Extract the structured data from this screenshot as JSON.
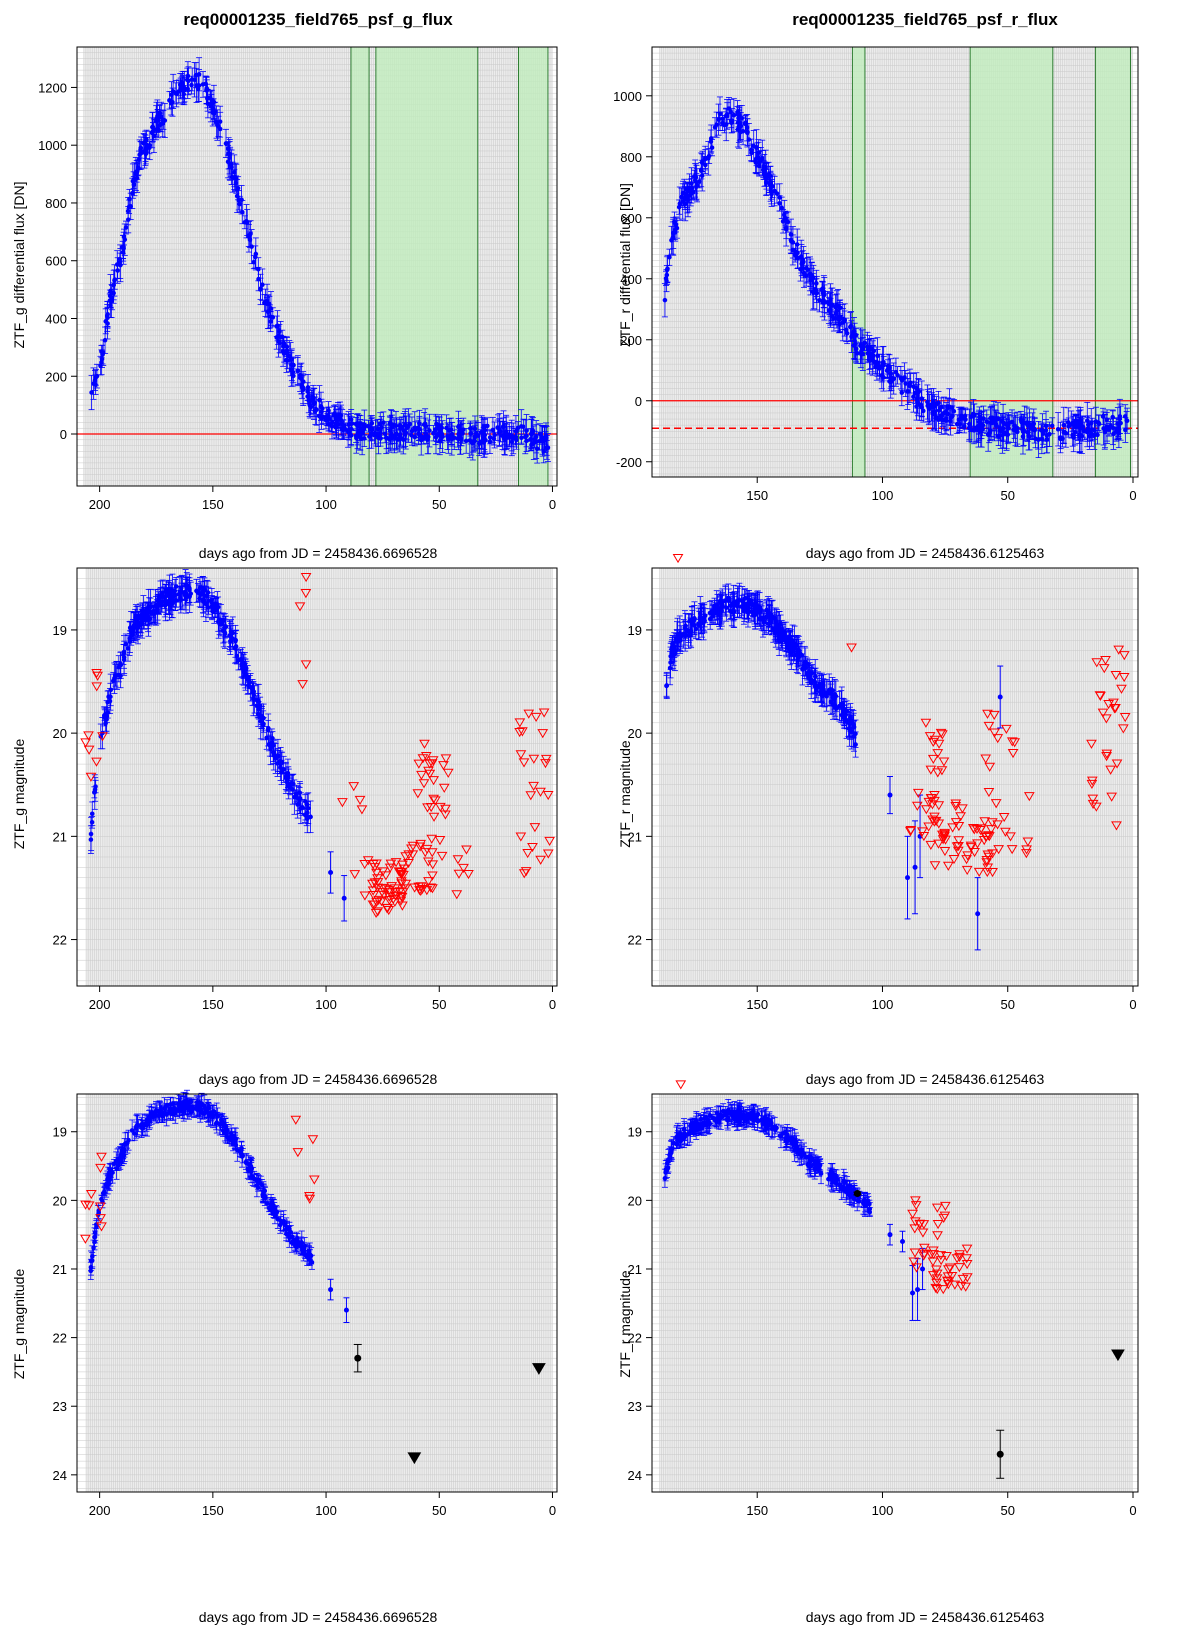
{
  "chart_data": [
    {
      "type": "scatter",
      "title": "req00001235_field765_psf_g_flux",
      "xlabel": "days ago from JD = 2458436.6696528",
      "ylabel": "ZTF_g  differential flux  [DN]",
      "xlim": [
        210,
        -2
      ],
      "ylim": [
        -180,
        1340
      ],
      "xticks": [
        200,
        150,
        100,
        50,
        0
      ],
      "yticks": [
        0,
        200,
        400,
        600,
        800,
        1000,
        1200
      ],
      "grid": true,
      "x_reversed": true,
      "reference_line_solid": 0,
      "shaded_intervals": [
        [
          89,
          81
        ],
        [
          78,
          33
        ],
        [
          15,
          2
        ]
      ],
      "curve": {
        "kind": "flux",
        "rise": [
          [
            205,
            120
          ],
          [
            203,
            170
          ],
          [
            200,
            230
          ],
          [
            195,
            480
          ],
          [
            190,
            620
          ],
          [
            186,
            830
          ],
          [
            182,
            960
          ],
          [
            176,
            1050
          ],
          [
            170,
            1130
          ],
          [
            165,
            1190
          ],
          [
            160,
            1220
          ],
          [
            155,
            1215
          ],
          [
            150,
            1140
          ],
          [
            145,
            1010
          ],
          [
            140,
            870
          ],
          [
            135,
            730
          ],
          [
            130,
            560
          ],
          [
            125,
            420
          ],
          [
            120,
            320
          ],
          [
            115,
            230
          ],
          [
            110,
            160
          ],
          [
            105,
            100
          ],
          [
            100,
            70
          ],
          [
            95,
            40
          ],
          [
            90,
            25
          ],
          [
            85,
            12
          ],
          [
            70,
            10
          ],
          [
            50,
            5
          ],
          [
            35,
            -10
          ],
          [
            30,
            0
          ],
          [
            12,
            0
          ],
          [
            2,
            -40
          ]
        ]
      },
      "limits": []
    },
    {
      "type": "scatter",
      "title": "req00001235_field765_psf_r_flux",
      "xlabel": "days ago from JD = 2458436.6125463",
      "ylabel": "ZTF_r  differential flux  [DN]",
      "xlim": [
        192,
        -2
      ],
      "ylim": [
        -250,
        1160
      ],
      "xticks": [
        150,
        100,
        50,
        0
      ],
      "yticks": [
        -200,
        0,
        200,
        400,
        600,
        800,
        1000
      ],
      "grid": true,
      "x_reversed": true,
      "reference_line_solid": 0,
      "reference_line_dashed": -90,
      "shaded_intervals": [
        [
          112,
          107
        ],
        [
          65,
          32
        ],
        [
          15,
          1
        ]
      ],
      "curve": {
        "kind": "flux",
        "rise": [
          [
            187,
            330
          ],
          [
            184,
            540
          ],
          [
            180,
            650
          ],
          [
            176,
            690
          ],
          [
            170,
            800
          ],
          [
            165,
            930
          ],
          [
            160,
            940
          ],
          [
            155,
            890
          ],
          [
            150,
            800
          ],
          [
            145,
            720
          ],
          [
            140,
            620
          ],
          [
            135,
            500
          ],
          [
            130,
            410
          ],
          [
            125,
            350
          ],
          [
            120,
            300
          ],
          [
            115,
            260
          ],
          [
            110,
            180
          ],
          [
            105,
            150
          ],
          [
            100,
            110
          ],
          [
            95,
            70
          ],
          [
            90,
            40
          ],
          [
            85,
            0
          ],
          [
            80,
            -30
          ],
          [
            70,
            -50
          ],
          [
            60,
            -80
          ],
          [
            50,
            -90
          ],
          [
            45,
            -90
          ],
          [
            36,
            -110
          ],
          [
            12,
            -80
          ],
          [
            2,
            -80
          ]
        ]
      },
      "limits": []
    },
    {
      "type": "scatter",
      "title": "",
      "xlabel": "days ago from JD = 2458436.6696528",
      "ylabel": "ZTF_g  magnitude",
      "xlim": [
        210,
        -2
      ],
      "ylim": [
        22.45,
        18.4
      ],
      "xticks": [
        200,
        150,
        100,
        50,
        0
      ],
      "yticks": [
        19,
        20,
        21,
        22
      ],
      "grid": true,
      "x_reversed": true,
      "curve": {
        "kind": "mag",
        "rise": [
          [
            204,
            21.0
          ],
          [
            202,
            20.5
          ],
          [
            200,
            20.1
          ],
          [
            195,
            19.6
          ],
          [
            190,
            19.35
          ],
          [
            186,
            19.0
          ],
          [
            182,
            18.9
          ],
          [
            176,
            18.78
          ],
          [
            170,
            18.68
          ],
          [
            162,
            18.62
          ],
          [
            155,
            18.65
          ],
          [
            150,
            18.75
          ],
          [
            145,
            18.95
          ],
          [
            140,
            19.15
          ],
          [
            135,
            19.45
          ],
          [
            130,
            19.75
          ],
          [
            125,
            20.05
          ],
          [
            120,
            20.3
          ],
          [
            115,
            20.55
          ],
          [
            110,
            20.7
          ],
          [
            106,
            20.85
          ]
        ]
      },
      "extra_points": [
        [
          98,
          21.35,
          0.2
        ],
        [
          92,
          21.6,
          0.22
        ]
      ],
      "limits": {
        "marker": "open-triangle-down",
        "color": "#ff0000",
        "groups": [
          [
            205,
            20.3,
            4,
            0.4
          ],
          [
            200,
            19.9,
            5,
            0.6
          ],
          [
            110,
            19.3,
            5,
            0.9
          ],
          [
            87,
            21.0,
            8,
            0.6
          ],
          [
            73,
            21.5,
            50,
            0.25
          ],
          [
            60,
            21.3,
            30,
            0.25
          ],
          [
            53,
            20.5,
            25,
            0.4
          ],
          [
            48,
            21.3,
            8,
            0.3
          ],
          [
            38,
            21.25,
            3,
            0.15
          ],
          [
            8,
            20.5,
            25,
            0.9
          ]
        ]
      }
    },
    {
      "type": "scatter",
      "title": "",
      "xlabel": "days ago from JD = 2458436.6125463",
      "ylabel": "ZTF_r  magnitude",
      "xlim": [
        192,
        -2
      ],
      "ylim": [
        22.45,
        18.4
      ],
      "xticks": [
        150,
        100,
        50,
        0
      ],
      "yticks": [
        19,
        20,
        21,
        22
      ],
      "grid": true,
      "x_reversed": true,
      "curve": {
        "kind": "mag",
        "rise": [
          [
            187,
            19.7
          ],
          [
            184,
            19.2
          ],
          [
            180,
            19.05
          ],
          [
            176,
            18.95
          ],
          [
            170,
            18.85
          ],
          [
            165,
            18.78
          ],
          [
            160,
            18.75
          ],
          [
            155,
            18.76
          ],
          [
            150,
            18.8
          ],
          [
            145,
            18.9
          ],
          [
            140,
            19.05
          ],
          [
            135,
            19.2
          ],
          [
            130,
            19.4
          ],
          [
            125,
            19.55
          ],
          [
            120,
            19.65
          ],
          [
            115,
            19.8
          ],
          [
            112,
            19.95
          ],
          [
            110,
            20.1
          ]
        ]
      },
      "extra_points": [
        [
          97,
          20.6,
          0.18
        ],
        [
          90,
          21.4,
          0.4
        ],
        [
          87,
          21.3,
          0.45
        ],
        [
          85,
          21.0,
          0.4
        ],
        [
          62,
          21.75,
          0.35
        ],
        [
          53,
          19.65,
          0.3
        ]
      ],
      "limits": {
        "marker": "open-triangle-down",
        "color": "#ff0000",
        "groups": [
          [
            182,
            18.35,
            1,
            0.05
          ],
          [
            112,
            19.2,
            1,
            0.05
          ],
          [
            82,
            20.4,
            25,
            0.6
          ],
          [
            75,
            20.95,
            30,
            0.35
          ],
          [
            63,
            21.1,
            25,
            0.25
          ],
          [
            52,
            20.5,
            25,
            0.8
          ],
          [
            42,
            20.9,
            4,
            0.3
          ],
          [
            10,
            20.0,
            30,
            0.9
          ]
        ]
      }
    },
    {
      "type": "scatter",
      "title": "",
      "xlabel": "days ago from JD = 2458436.6696528",
      "ylabel": "ZTF_g  magnitude",
      "xlim": [
        210,
        -2
      ],
      "ylim": [
        24.25,
        18.45
      ],
      "xticks": [
        200,
        150,
        100,
        50,
        0
      ],
      "yticks": [
        19,
        20,
        21,
        22,
        23,
        24
      ],
      "grid": true,
      "x_reversed": true,
      "curve": {
        "kind": "mag",
        "rise": [
          [
            204,
            21.0
          ],
          [
            202,
            20.5
          ],
          [
            200,
            20.1
          ],
          [
            195,
            19.6
          ],
          [
            190,
            19.35
          ],
          [
            186,
            19.0
          ],
          [
            182,
            18.9
          ],
          [
            176,
            18.78
          ],
          [
            170,
            18.68
          ],
          [
            162,
            18.62
          ],
          [
            155,
            18.65
          ],
          [
            150,
            18.75
          ],
          [
            145,
            18.95
          ],
          [
            140,
            19.15
          ],
          [
            135,
            19.45
          ],
          [
            130,
            19.75
          ],
          [
            125,
            20.05
          ],
          [
            120,
            20.3
          ],
          [
            115,
            20.55
          ],
          [
            110,
            20.7
          ],
          [
            106,
            20.85
          ]
        ]
      },
      "extra_points": [
        [
          98,
          21.3,
          0.15
        ],
        [
          91,
          21.6,
          0.18
        ]
      ],
      "limits": {
        "marker": "open-triangle-down",
        "color": "#ff0000",
        "groups": [
          [
            205,
            20.3,
            4,
            0.4
          ],
          [
            200,
            19.9,
            5,
            0.6
          ],
          [
            110,
            19.3,
            6,
            0.9
          ]
        ]
      },
      "black_points": [
        {
          "x": 86,
          "y": 22.3,
          "err": 0.2
        }
      ],
      "black_limits": [
        {
          "x": 61,
          "y": 23.75
        },
        {
          "x": 6,
          "y": 22.45
        }
      ]
    },
    {
      "type": "scatter",
      "title": "",
      "xlabel": "days ago from JD = 2458436.6125463",
      "ylabel": "ZTF_r  magnitude",
      "xlim": [
        192,
        -2
      ],
      "ylim": [
        24.25,
        18.45
      ],
      "xticks": [
        150,
        100,
        50,
        0
      ],
      "yticks": [
        19,
        20,
        21,
        22,
        23,
        24
      ],
      "grid": true,
      "x_reversed": true,
      "curve": {
        "kind": "mag",
        "rise": [
          [
            187,
            19.7
          ],
          [
            184,
            19.2
          ],
          [
            180,
            19.05
          ],
          [
            176,
            18.95
          ],
          [
            170,
            18.85
          ],
          [
            165,
            18.78
          ],
          [
            160,
            18.75
          ],
          [
            155,
            18.76
          ],
          [
            150,
            18.8
          ],
          [
            145,
            18.9
          ],
          [
            140,
            19.05
          ],
          [
            135,
            19.2
          ],
          [
            130,
            19.4
          ],
          [
            125,
            19.55
          ],
          [
            120,
            19.65
          ],
          [
            115,
            19.8
          ],
          [
            110,
            19.95
          ],
          [
            105,
            20.1
          ]
        ]
      },
      "extra_points": [
        [
          97,
          20.5,
          0.15
        ],
        [
          92,
          20.6,
          0.15
        ],
        [
          88,
          21.35,
          0.4
        ],
        [
          86,
          21.3,
          0.45
        ],
        [
          84,
          21.0,
          0.3
        ]
      ],
      "limits": {
        "marker": "open-triangle-down",
        "color": "#ff0000",
        "groups": [
          [
            182,
            18.35,
            1,
            0.05
          ],
          [
            81,
            20.5,
            25,
            0.5
          ],
          [
            73,
            21.0,
            30,
            0.3
          ]
        ]
      },
      "black_points": [
        {
          "x": 110,
          "y": 19.9,
          "err": 0.02
        },
        {
          "x": 53,
          "y": 23.7,
          "err": 0.35
        }
      ],
      "black_limits": [
        {
          "x": 6,
          "y": 22.25
        }
      ]
    }
  ]
}
